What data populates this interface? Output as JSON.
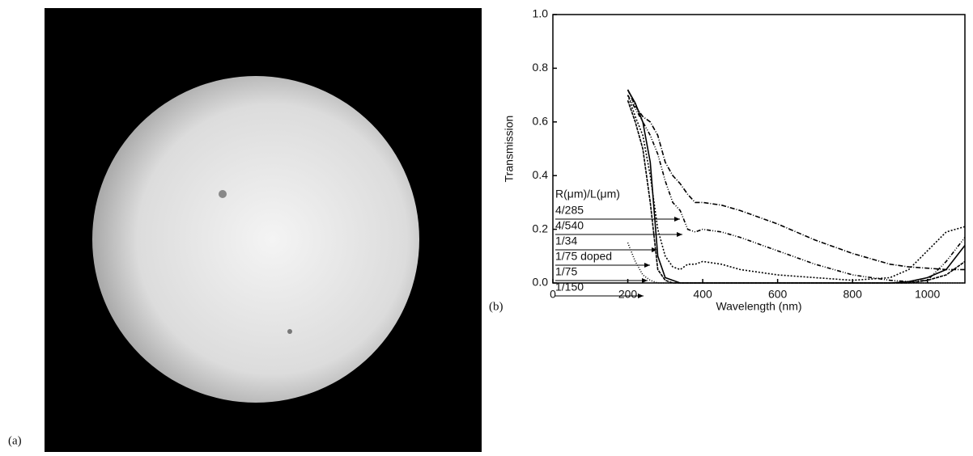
{
  "figure": {
    "image_label": "(a)"
  },
  "chart_data": {
    "type": "line",
    "panel_label": "(b)",
    "xlabel": "Wavelength (nm)",
    "ylabel": "Transmission",
    "legend_title": "R(μm)/L(μm)",
    "x": [
      200,
      220,
      240,
      260,
      280,
      300,
      320,
      340,
      360,
      380,
      400,
      450,
      500,
      600,
      700,
      800,
      900,
      950,
      1000,
      1050,
      1100
    ],
    "xlim": [
      0,
      1100
    ],
    "xticks": [
      0,
      200,
      400,
      600,
      800,
      1000
    ],
    "ylim": [
      0,
      1
    ],
    "yticks": [
      {
        "value": 0,
        "label": "0.0"
      },
      0.2,
      0.4,
      0.6,
      0.8,
      {
        "value": 1,
        "label": "1.0"
      }
    ],
    "series": [
      {
        "name": "4/285",
        "color": "#000000",
        "dash": "6,2,1,2",
        "values": [
          0.72,
          0.66,
          0.62,
          0.6,
          0.55,
          0.45,
          0.4,
          0.37,
          0.33,
          0.3,
          0.3,
          0.29,
          0.27,
          0.22,
          0.16,
          0.11,
          0.07,
          0.06,
          0.055,
          0.05,
          0.05
        ]
      },
      {
        "name": "4/540",
        "color": "#000000",
        "dash": "5,2,1,2,1,2",
        "values": [
          0.7,
          0.65,
          0.6,
          0.55,
          0.48,
          0.38,
          0.3,
          0.27,
          0.2,
          0.19,
          0.2,
          0.19,
          0.17,
          0.12,
          0.07,
          0.03,
          0.01,
          0.005,
          0.01,
          0.08,
          0.17
        ]
      },
      {
        "name": "1/34",
        "color": "#000000",
        "dash": "2,2",
        "values": [
          0.7,
          0.62,
          0.55,
          0.4,
          0.2,
          0.1,
          0.06,
          0.05,
          0.07,
          0.07,
          0.08,
          0.07,
          0.05,
          0.03,
          0.02,
          0.01,
          0.02,
          0.05,
          0.12,
          0.19,
          0.21
        ]
      },
      {
        "name": "1/75 doped",
        "color": "#000000",
        "dash": "none",
        "values": [
          0.72,
          0.67,
          0.6,
          0.45,
          0.1,
          0.02,
          0.01,
          0,
          0,
          0,
          0,
          0,
          0,
          0,
          0,
          0,
          0,
          0.005,
          0.02,
          0.05,
          0.14
        ]
      },
      {
        "name": "1/75",
        "color": "#000000",
        "dash": "4,1",
        "values": [
          0.68,
          0.6,
          0.5,
          0.3,
          0.05,
          0.01,
          0,
          0,
          0,
          0,
          0,
          0,
          0,
          0,
          0,
          0,
          0,
          0,
          0.01,
          0.03,
          0.08
        ]
      },
      {
        "name": "1/150",
        "color": "#000000",
        "dash": "1,2",
        "values": [
          0.15,
          0.08,
          0.03,
          0.01,
          0,
          0,
          0,
          0,
          0,
          0,
          0,
          0,
          0,
          0,
          0,
          0,
          0,
          0,
          0,
          0,
          0
        ]
      }
    ]
  }
}
